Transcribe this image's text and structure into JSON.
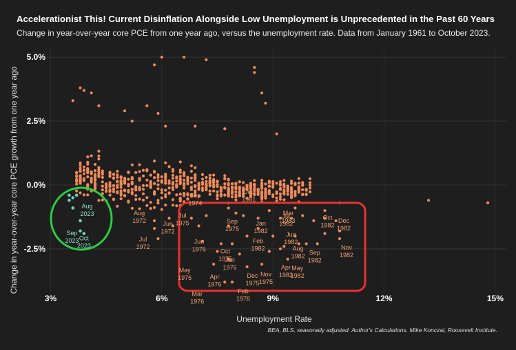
{
  "chart_data": {
    "type": "scatter",
    "title": "Accelerationist This! Current Disinflation Alongside Low Unemployment is Unprecedented in the Past 60 Years",
    "subtitle": "Change in year-over-year core PCE from one year ago, versus the unemployment rate. Data from January 1961 to October 2023.",
    "xlabel": "Unemployment Rate",
    "ylabel": "Change in year-over-year core PCE growth from one year ago",
    "caption": "BEA, BLS, seasonally adjusted. Author's Calculations. Mike Konczal, Roosevelt Institute.",
    "xlim": [
      2.6,
      15.3
    ],
    "ylim": [
      -4.6,
      5.3
    ],
    "xticks": [
      "3%",
      "6%",
      "9%",
      "12%",
      "15%"
    ],
    "xtick_values": [
      3,
      6,
      9,
      12,
      15
    ],
    "yticks": [
      "5.0%",
      "2.5%",
      "0.0%",
      "-2.5%"
    ],
    "ytick_values": [
      5.0,
      2.5,
      0.0,
      -2.5
    ],
    "colors": {
      "background": "#1e1e1e",
      "points": "#f08a5a",
      "grid": "#3a3a3a",
      "recent_points": "#6fd0b8",
      "green_circle": "#2ecc40",
      "red_box": "#e8322c"
    },
    "cloud_generator": {
      "seed": 7,
      "count": 640,
      "description": "historical monthly observations 1961-2023"
    },
    "highlight_points": [
      {
        "x": 6.0,
        "y": 5.0
      },
      {
        "x": 5.8,
        "y": 4.7
      },
      {
        "x": 6.6,
        "y": 5.0
      },
      {
        "x": 7.2,
        "y": 4.9
      },
      {
        "x": 3.8,
        "y": 3.8
      },
      {
        "x": 3.9,
        "y": 3.7
      },
      {
        "x": 3.6,
        "y": 3.3
      },
      {
        "x": 4.1,
        "y": 3.6
      },
      {
        "x": 4.3,
        "y": 3.1
      },
      {
        "x": 5.0,
        "y": 2.9
      },
      {
        "x": 5.6,
        "y": 3.1
      },
      {
        "x": 8.5,
        "y": 4.6
      },
      {
        "x": 8.5,
        "y": 4.4
      },
      {
        "x": 8.7,
        "y": 3.6
      },
      {
        "x": 8.8,
        "y": 3.2
      },
      {
        "x": 9.1,
        "y": 2.0
      },
      {
        "x": 6.9,
        "y": 2.3
      },
      {
        "x": 7.7,
        "y": 2.2
      },
      {
        "x": 13.2,
        "y": -0.6
      },
      {
        "x": 14.8,
        "y": -0.7
      },
      {
        "x": 10.8,
        "y": -0.7
      },
      {
        "x": 5.9,
        "y": 2.8
      },
      {
        "x": 6.1,
        "y": 2.3
      },
      {
        "x": 5.2,
        "y": 2.5
      }
    ],
    "recession_1970s_80s_points": [
      {
        "x": 7.8,
        "y": -0.9
      },
      {
        "x": 8.0,
        "y": -1.1
      },
      {
        "x": 8.2,
        "y": -1.2
      },
      {
        "x": 8.6,
        "y": -1.3
      },
      {
        "x": 8.9,
        "y": -1.0
      },
      {
        "x": 9.2,
        "y": -1.3
      },
      {
        "x": 9.5,
        "y": -1.3
      },
      {
        "x": 9.8,
        "y": -1.2
      },
      {
        "x": 10.1,
        "y": -1.4
      },
      {
        "x": 10.4,
        "y": -1.3
      },
      {
        "x": 10.7,
        "y": -1.4
      },
      {
        "x": 10.8,
        "y": -1.8
      },
      {
        "x": 10.4,
        "y": -1.9
      },
      {
        "x": 9.9,
        "y": -2.3
      },
      {
        "x": 9.6,
        "y": -2.0
      },
      {
        "x": 9.3,
        "y": -2.4
      },
      {
        "x": 9.0,
        "y": -2.0
      },
      {
        "x": 8.6,
        "y": -1.7
      },
      {
        "x": 8.3,
        "y": -2.0
      },
      {
        "x": 7.9,
        "y": -2.3
      },
      {
        "x": 7.6,
        "y": -2.3
      },
      {
        "x": 7.5,
        "y": -2.6
      },
      {
        "x": 7.8,
        "y": -2.9
      },
      {
        "x": 7.4,
        "y": -3.1
      },
      {
        "x": 7.7,
        "y": -3.8
      },
      {
        "x": 7.9,
        "y": -3.8
      },
      {
        "x": 8.3,
        "y": -3.2
      },
      {
        "x": 8.7,
        "y": -3.1
      },
      {
        "x": 9.2,
        "y": -2.5
      },
      {
        "x": 9.4,
        "y": -2.9
      },
      {
        "x": 9.7,
        "y": -2.3
      },
      {
        "x": 10.2,
        "y": -2.3
      },
      {
        "x": 10.8,
        "y": -2.1
      },
      {
        "x": 7.2,
        "y": -1.2
      },
      {
        "x": 7.0,
        "y": -1.6
      },
      {
        "x": 6.8,
        "y": -1.3
      },
      {
        "x": 7.1,
        "y": -2.2
      },
      {
        "x": 8.1,
        "y": -2.7
      },
      {
        "x": 8.9,
        "y": -2.6
      },
      {
        "x": 7.8,
        "y": -1.6
      },
      {
        "x": 5.8,
        "y": -1.4
      },
      {
        "x": 5.8,
        "y": -1.7
      },
      {
        "x": 5.9,
        "y": -2.1
      },
      {
        "x": 6.2,
        "y": -1.3
      },
      {
        "x": 6.3,
        "y": -1.6
      },
      {
        "x": 10.4,
        "y": -1.0
      },
      {
        "x": 9.6,
        "y": -0.9
      }
    ],
    "recent_points": [
      {
        "x": 3.5,
        "y": -0.6
      },
      {
        "x": 3.5,
        "y": -0.4
      },
      {
        "x": 3.6,
        "y": -0.5
      },
      {
        "x": 3.6,
        "y": -0.9
      },
      {
        "x": 3.7,
        "y": -0.4
      },
      {
        "x": 3.8,
        "y": -1.4
      },
      {
        "x": 3.8,
        "y": -1.8
      },
      {
        "x": 3.9,
        "y": -1.9
      }
    ],
    "annotations": {
      "recent": [
        {
          "label": "Aug\n2023",
          "x": 3.8,
          "y": -1.4
        },
        {
          "label": "Sep\n2023",
          "x": 3.8,
          "y": -1.8
        },
        {
          "label": "Oct\n2023",
          "x": 3.9,
          "y": -1.9
        }
      ],
      "historical": [
        {
          "label": "Aug\n1972",
          "x": 5.8,
          "y": -1.4
        },
        {
          "label": "Jun\n1972",
          "x": 6.2,
          "y": -1.6
        },
        {
          "label": "Jul\n1972",
          "x": 5.9,
          "y": -2.1
        },
        {
          "label": "Sep\n1974",
          "x": 7.2,
          "y": -1.2
        },
        {
          "label": "Jul\n1975",
          "x": 7.0,
          "y": -1.6
        },
        {
          "label": "Sep\n1975",
          "x": 7.9,
          "y": -1.4
        },
        {
          "label": "Oct\n1975",
          "x": 7.9,
          "y": -2.3
        },
        {
          "label": "Jun\n1976",
          "x": 7.6,
          "y": -2.3
        },
        {
          "label": "Jan\n1976",
          "x": 7.8,
          "y": -2.9
        },
        {
          "label": "May\n1976",
          "x": 7.4,
          "y": -3.1
        },
        {
          "label": "Apr\n1976",
          "x": 7.5,
          "y": -3.3
        },
        {
          "label": "Mar\n1976",
          "x": 7.7,
          "y": -3.8
        },
        {
          "label": "Feb\n1976",
          "x": 7.9,
          "y": -3.8
        },
        {
          "label": "Dec\n1975",
          "x": 8.3,
          "y": -3.2
        },
        {
          "label": "Nov\n1975",
          "x": 8.7,
          "y": -3.1
        },
        {
          "label": "Dec\n1981",
          "x": 8.5,
          "y": -1.0
        },
        {
          "label": "Jan\n1982",
          "x": 8.6,
          "y": -1.7
        },
        {
          "label": "Feb\n1982",
          "x": 8.3,
          "y": -2.0
        },
        {
          "label": "Mar\n1983",
          "x": 9.6,
          "y": -1.4
        },
        {
          "label": "Jun\n1982",
          "x": 9.3,
          "y": -2.4
        },
        {
          "label": "May\n1982",
          "x": 9.4,
          "y": -2.9
        },
        {
          "label": "Apr\n1982",
          "x": 9.2,
          "y": -2.5
        },
        {
          "label": "Jul\n1982",
          "x": 9.8,
          "y": -1.2
        },
        {
          "label": "Aug\n1982",
          "x": 9.9,
          "y": -2.3
        },
        {
          "label": "Oct\n1982",
          "x": 10.4,
          "y": -1.3
        },
        {
          "label": "Sep\n1982",
          "x": 10.2,
          "y": -2.3
        },
        {
          "label": "Dec\n1982",
          "x": 10.8,
          "y": -1.8
        },
        {
          "label": "Nov\n1982",
          "x": 10.8,
          "y": -2.1
        }
      ]
    }
  }
}
